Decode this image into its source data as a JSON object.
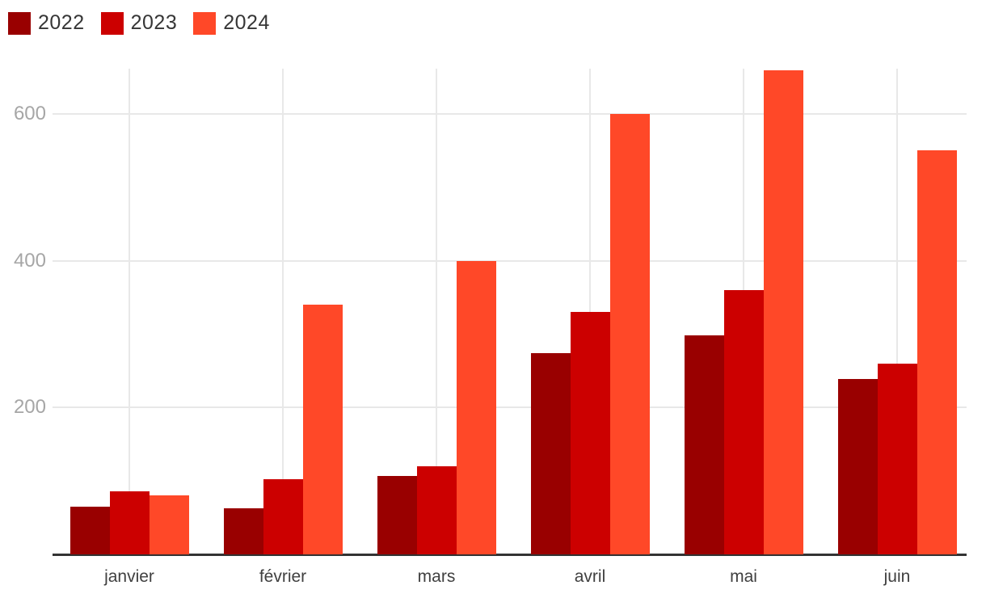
{
  "legend": {
    "items": [
      {
        "label": "2022"
      },
      {
        "label": "2023"
      },
      {
        "label": "2024"
      }
    ]
  },
  "chart_data": {
    "type": "bar",
    "title": "",
    "xlabel": "",
    "ylabel": "",
    "categories": [
      "janvier",
      "février",
      "mars",
      "avril",
      "mai",
      "juin"
    ],
    "series": [
      {
        "name": "2022",
        "color": "#990000",
        "values": [
          65,
          63,
          107,
          274,
          298,
          239
        ]
      },
      {
        "name": "2023",
        "color": "#CC0000",
        "values": [
          86,
          102,
          120,
          330,
          360,
          260
        ]
      },
      {
        "name": "2024",
        "color": "#FF4828",
        "values": [
          80,
          340,
          400,
          600,
          660,
          550
        ]
      }
    ],
    "yticks": [
      200,
      400,
      600
    ],
    "ylim": [
      0,
      662
    ],
    "grid": true,
    "legend_position": "top-left",
    "colors": {
      "axis_line": "#333333",
      "gridline": "#E8E8E8",
      "xtick_text": "#404040",
      "ytick_text": "#A6A6A6"
    }
  }
}
